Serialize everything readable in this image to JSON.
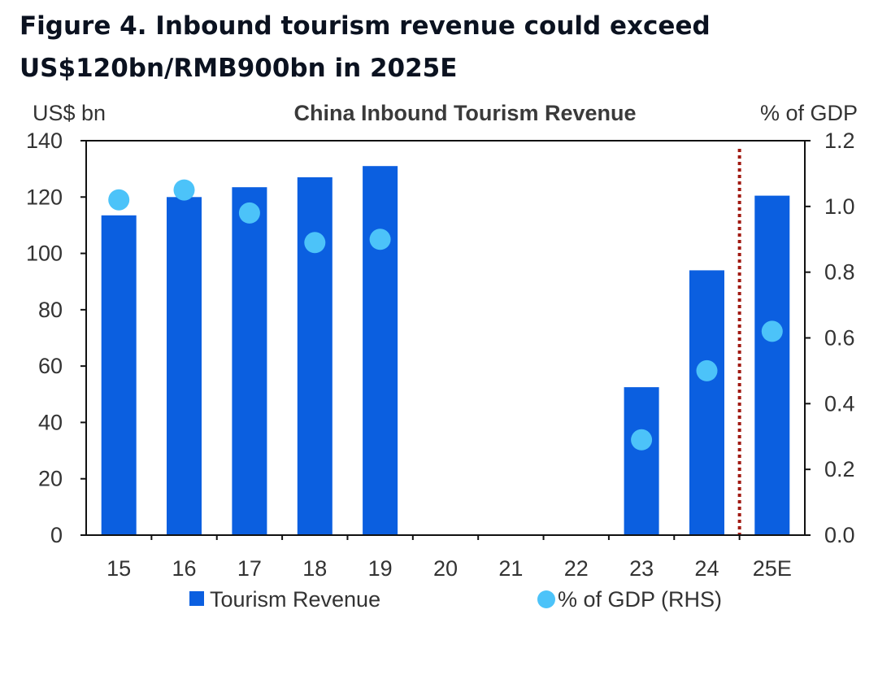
{
  "figure": {
    "title_line1": "Figure 4. Inbound tourism revenue could exceed",
    "title_line2": "US$120bn/RMB900bn in 2025E"
  },
  "chart_data": {
    "type": "bar",
    "title": "China Inbound Tourism Revenue",
    "xlabel": "",
    "ylabel": "US$ bn",
    "y2label": "% of GDP",
    "categories": [
      "15",
      "16",
      "17",
      "18",
      "19",
      "20",
      "21",
      "22",
      "23",
      "24",
      "25E"
    ],
    "series": [
      {
        "name": "Tourism Revenue",
        "type": "bar",
        "axis": "left",
        "values": [
          113.5,
          120,
          123.5,
          127,
          131,
          null,
          null,
          null,
          52.5,
          94,
          120.5
        ]
      },
      {
        "name": "% of GDP (RHS)",
        "type": "scatter",
        "axis": "right",
        "values": [
          1.02,
          1.05,
          0.98,
          0.89,
          0.9,
          null,
          null,
          null,
          0.29,
          0.5,
          0.62
        ]
      }
    ],
    "ylim": [
      0,
      140
    ],
    "y2lim": [
      0,
      1.2
    ],
    "yticks": [
      "0",
      "20",
      "40",
      "60",
      "80",
      "100",
      "120",
      "140"
    ],
    "y2ticks": [
      "0.0",
      "0.2",
      "0.4",
      "0.6",
      "0.8",
      "1.0",
      "1.2"
    ],
    "forecast_divider_between": [
      "24",
      "25E"
    ],
    "grid": false,
    "legend_position": "bottom",
    "colors": {
      "bar": "#0b5fe0",
      "dot": "#4cc3f9",
      "divider": "#a11a12",
      "axis": "#111111"
    }
  }
}
